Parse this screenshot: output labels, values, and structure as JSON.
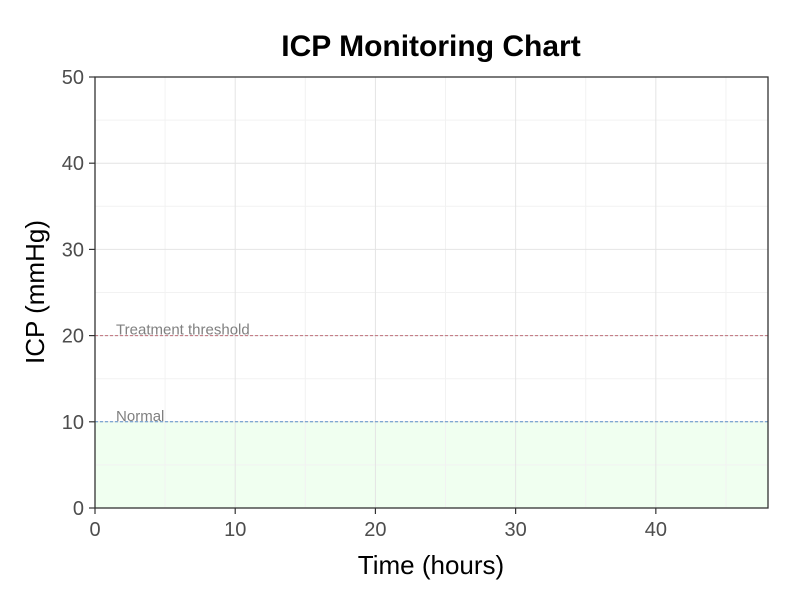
{
  "chart_data": {
    "type": "line",
    "title": "ICP Monitoring Chart",
    "xlabel": "Time (hours)",
    "ylabel": "ICP (mmHg)",
    "xlim": [
      0,
      48
    ],
    "ylim": [
      0,
      50
    ],
    "x_ticks": [
      0,
      10,
      20,
      30,
      40
    ],
    "y_ticks": [
      0,
      10,
      20,
      30,
      40,
      50
    ],
    "x_minor_ticks": [
      5,
      15,
      25,
      35,
      45
    ],
    "y_minor_ticks": [
      5,
      15,
      25,
      35,
      45
    ],
    "grid": true,
    "series": [],
    "shaded_region": {
      "y_from": 0,
      "y_to": 10,
      "color": "#f0fff0"
    },
    "reference_lines": [
      {
        "y": 20,
        "label": "Treatment threshold",
        "color": "#c0707a",
        "label_x": 1.5
      },
      {
        "y": 10,
        "label": "Normal",
        "color": "#5b8fc7",
        "label_x": 1.5
      }
    ]
  },
  "colors": {
    "grid_major": "#e4e4e4",
    "grid_minor": "#f2f2f2",
    "panel_border": "#333333",
    "tick_mark": "#333333"
  }
}
